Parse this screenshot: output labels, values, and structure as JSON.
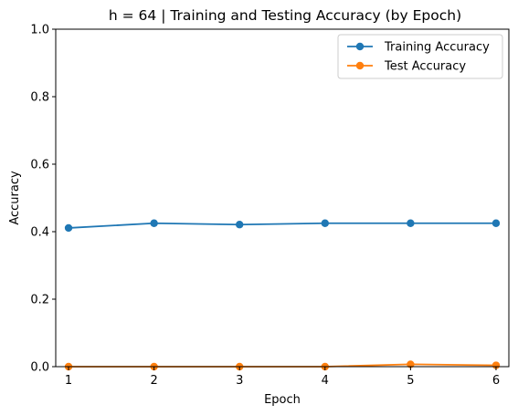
{
  "chart_data": {
    "type": "line",
    "title": "h = 64 | Training and Testing Accuracy (by Epoch)",
    "xlabel": "Epoch",
    "ylabel": "Accuracy",
    "x": [
      1,
      2,
      3,
      4,
      5,
      6
    ],
    "xlim": [
      0.85,
      6.15
    ],
    "ylim": [
      0.0,
      1.0
    ],
    "xticks": [
      "1",
      "2",
      "3",
      "4",
      "5",
      "6"
    ],
    "yticks": [
      "0.0",
      "0.2",
      "0.4",
      "0.6",
      "0.8",
      "1.0"
    ],
    "legend_position": "top-right",
    "grid": false,
    "series": [
      {
        "name": "Training Accuracy",
        "color": "#1f77b4",
        "values": [
          0.411,
          0.425,
          0.421,
          0.425,
          0.425,
          0.425
        ]
      },
      {
        "name": "Test Accuracy",
        "color": "#ff7f0e",
        "values": [
          0.0,
          0.0,
          0.0,
          0.0,
          0.007,
          0.004
        ]
      }
    ]
  }
}
